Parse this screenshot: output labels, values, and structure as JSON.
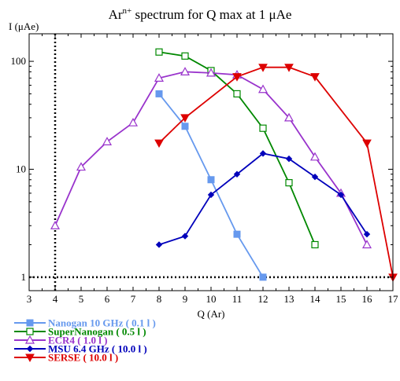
{
  "chart_data": {
    "type": "line",
    "title": "Ar",
    "title_sup": "n+",
    "title_rest": " spectrum for Q max at 1 μAe",
    "xlabel": "Q (Ar)",
    "ylabel": "I (μAe)",
    "xlim": [
      3,
      17
    ],
    "ylim": [
      0.75,
      180
    ],
    "yscale": "log",
    "xticks": [
      3,
      4,
      5,
      6,
      7,
      8,
      9,
      10,
      11,
      12,
      13,
      14,
      15,
      16,
      17
    ],
    "yticks": [
      1,
      10,
      100
    ],
    "ytick_labels": [
      "1",
      "10",
      "100"
    ],
    "reference_lines": {
      "x": 4,
      "y": 1,
      "style": "dotted"
    },
    "legend_position": "bottom-left",
    "series": [
      {
        "name": "Nanogan 10 GHz ( 0.1 l )",
        "color": "#6699ee",
        "marker": "square-filled",
        "points": [
          [
            8,
            50
          ],
          [
            9,
            25
          ],
          [
            10,
            8
          ],
          [
            11,
            2.5
          ],
          [
            12,
            1
          ]
        ]
      },
      {
        "name": "SuperNanogan ( 0.5 l )",
        "color": "#008800",
        "marker": "square-open",
        "points": [
          [
            8,
            122
          ],
          [
            9,
            112
          ],
          [
            10,
            82
          ],
          [
            11,
            50
          ],
          [
            12,
            24
          ],
          [
            13,
            7.5
          ],
          [
            14,
            2
          ]
        ]
      },
      {
        "name": "ECR4 ( 1.0 l )",
        "color": "#9933cc",
        "marker": "triangle-open",
        "points": [
          [
            4,
            3
          ],
          [
            5,
            10.5
          ],
          [
            6,
            18
          ],
          [
            7,
            27
          ],
          [
            8,
            70
          ],
          [
            9,
            80
          ],
          [
            10,
            78
          ],
          [
            11,
            75
          ],
          [
            12,
            55
          ],
          [
            13,
            30
          ],
          [
            14,
            13
          ],
          [
            15,
            6
          ],
          [
            16,
            2
          ]
        ]
      },
      {
        "name": "MSU 6.4 GHz ( 10.0 l )",
        "color": "#0000bb",
        "marker": "diamond-filled",
        "points": [
          [
            8,
            2
          ],
          [
            9,
            2.4
          ],
          [
            10,
            5.8
          ],
          [
            11,
            9
          ],
          [
            12,
            14
          ],
          [
            13,
            12.5
          ],
          [
            14,
            8.5
          ],
          [
            15,
            5.8
          ],
          [
            16,
            2.5
          ]
        ]
      },
      {
        "name": "SERSE ( 10.0 l )",
        "color": "#dd0000",
        "marker": "triangle-down-filled",
        "points": [
          [
            8,
            17.5
          ],
          [
            9,
            30
          ],
          [
            11,
            72
          ],
          [
            12,
            88
          ],
          [
            13,
            88
          ],
          [
            14,
            72
          ],
          [
            16,
            17.5
          ],
          [
            17,
            1
          ]
        ]
      }
    ]
  }
}
